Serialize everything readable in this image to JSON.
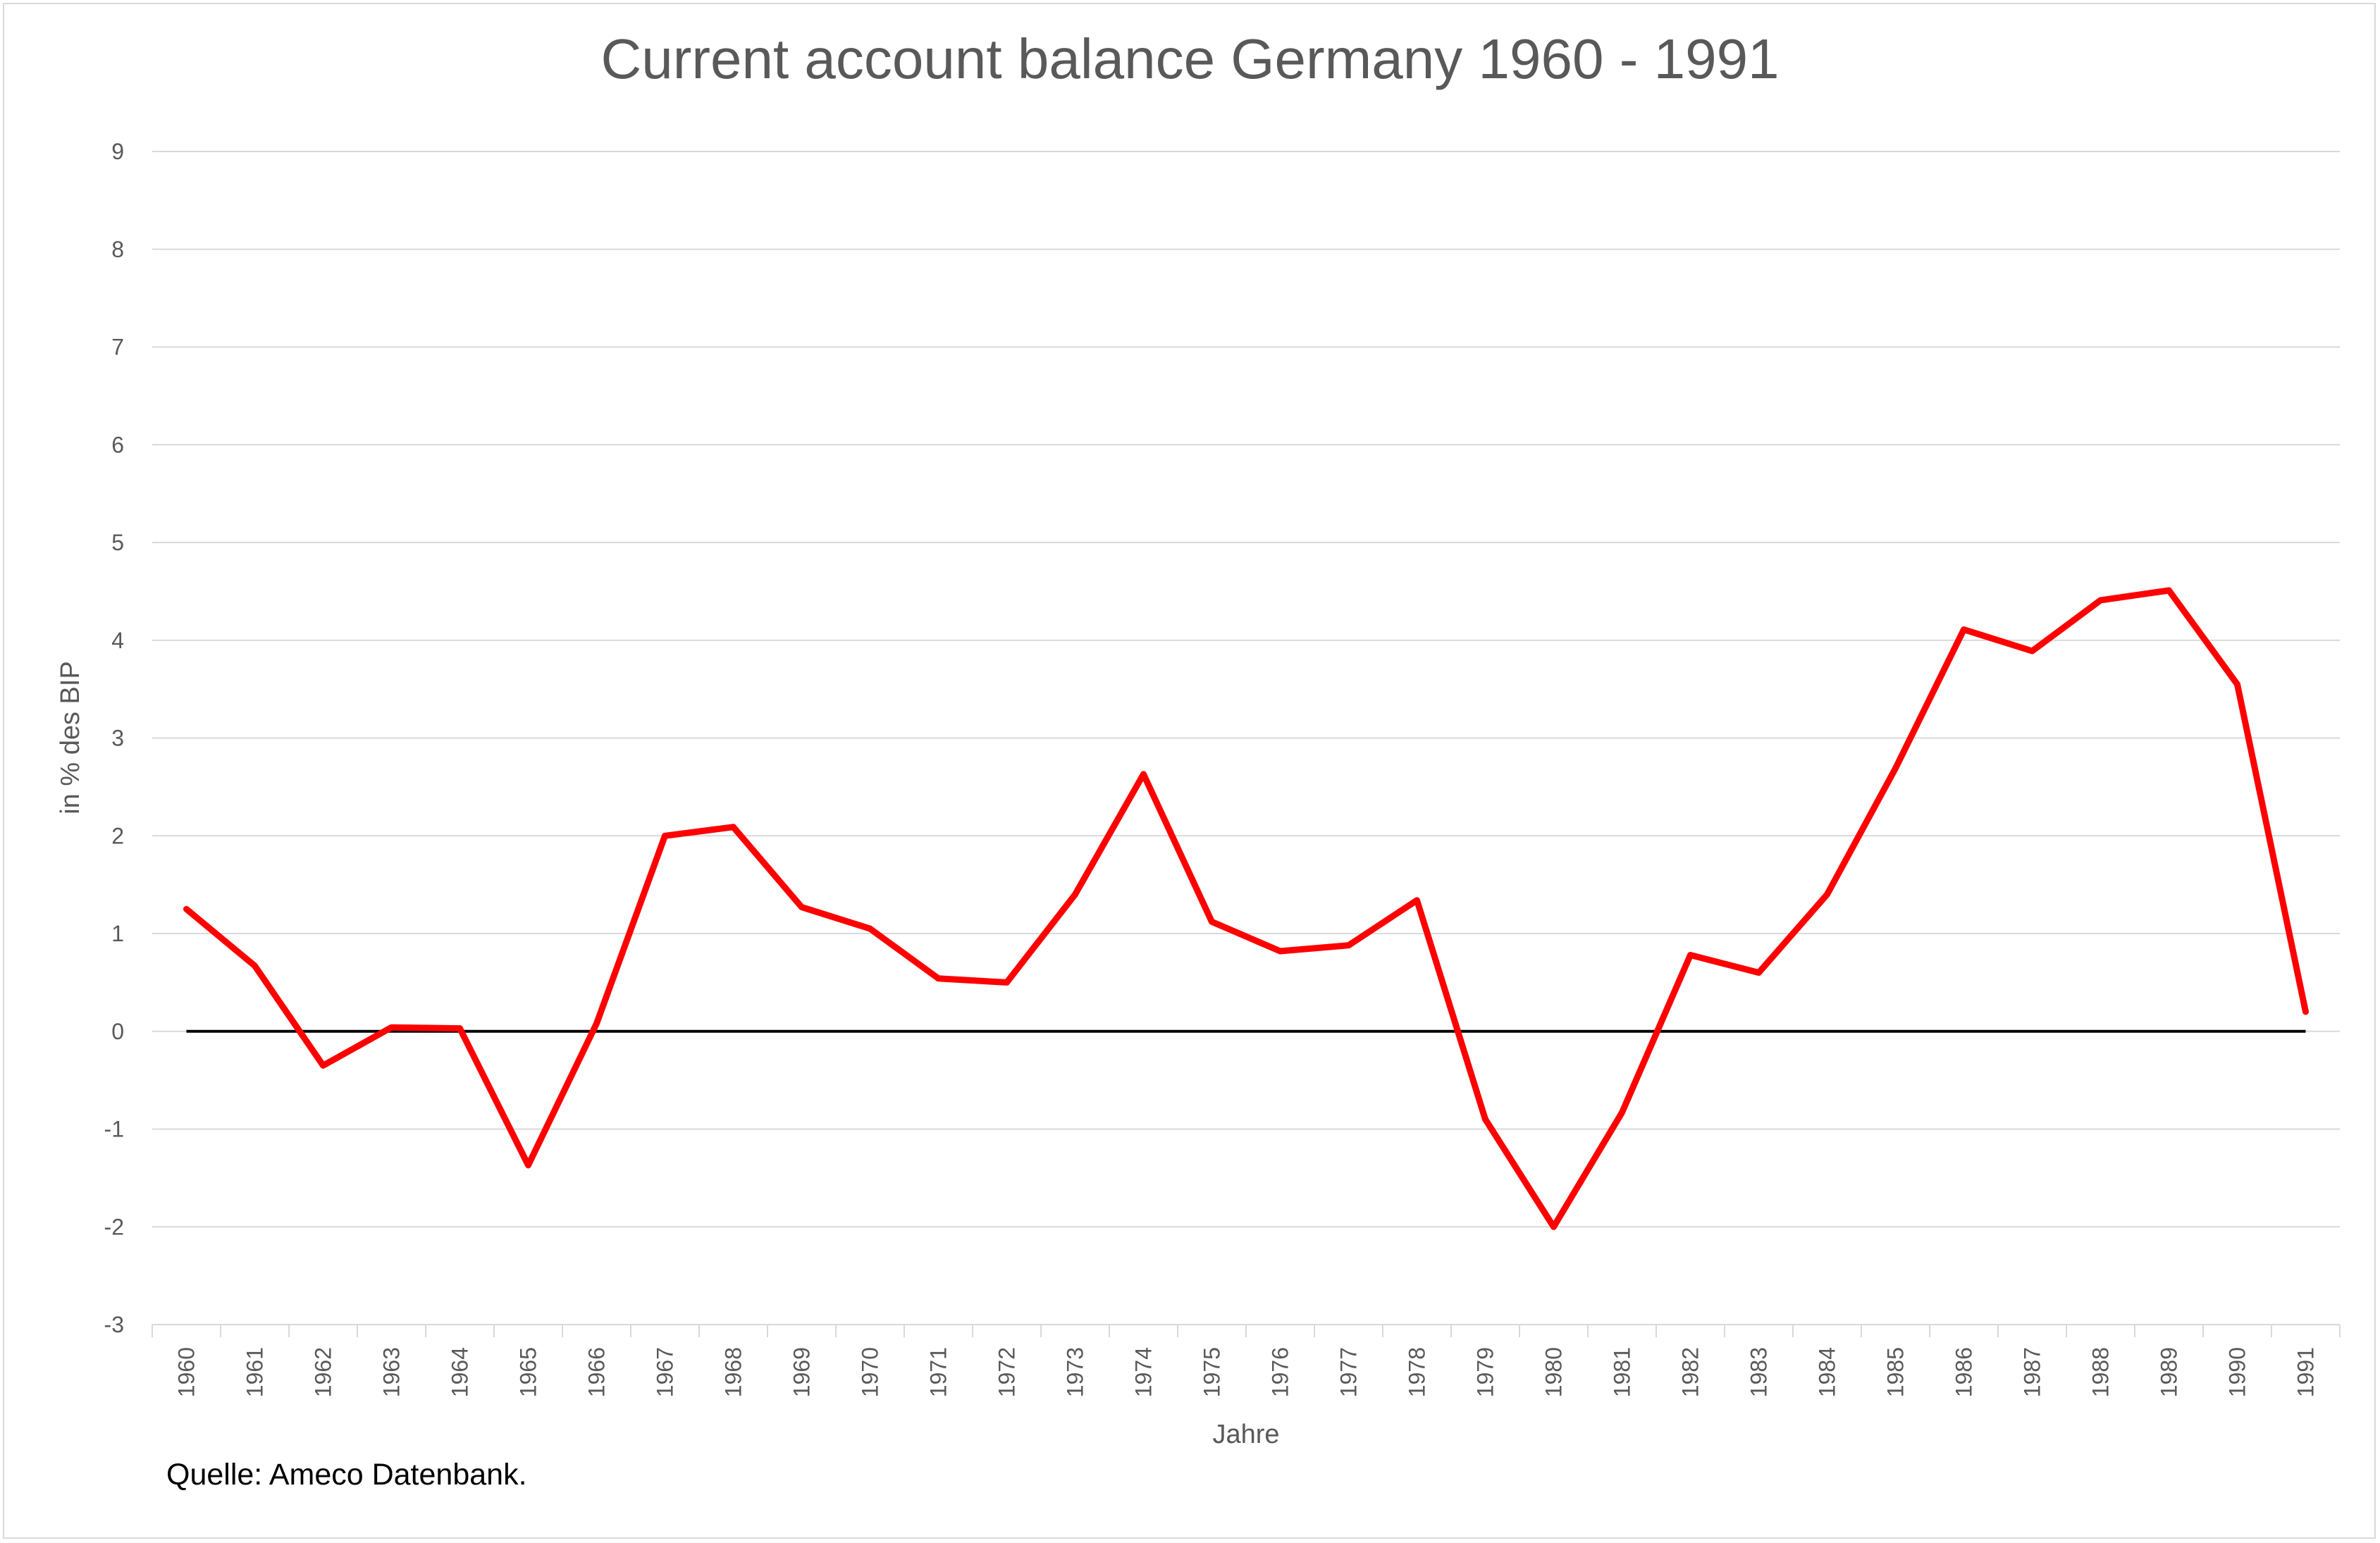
{
  "chart_data": {
    "type": "line",
    "title": "Current account balance Germany 1960 - 1991",
    "xlabel": "Jahre",
    "ylabel": "in % des BIP",
    "ylim": [
      -3,
      9
    ],
    "yticks": [
      -3,
      -2,
      -1,
      0,
      1,
      2,
      3,
      4,
      5,
      6,
      7,
      8,
      9
    ],
    "grid": true,
    "legend": "none",
    "categories": [
      "1960",
      "1961",
      "1962",
      "1963",
      "1964",
      "1965",
      "1966",
      "1967",
      "1968",
      "1969",
      "1970",
      "1971",
      "1972",
      "1973",
      "1974",
      "1975",
      "1976",
      "1977",
      "1978",
      "1979",
      "1980",
      "1981",
      "1982",
      "1983",
      "1984",
      "1985",
      "1986",
      "1987",
      "1988",
      "1989",
      "1990",
      "1991"
    ],
    "series": [
      {
        "color": "#ff0000",
        "values": [
          1.25,
          0.67,
          -0.35,
          0.04,
          0.03,
          -1.37,
          0.08,
          2.0,
          2.09,
          1.27,
          1.05,
          0.54,
          0.5,
          1.4,
          2.63,
          1.12,
          0.82,
          0.88,
          1.34,
          -0.9,
          -2.0,
          -0.83,
          0.78,
          0.6,
          1.4,
          2.69,
          4.11,
          3.89,
          4.41,
          4.51,
          3.55,
          0.2
        ]
      }
    ],
    "zero_line_color": "#000000"
  },
  "source": "Quelle: Ameco Datenbank."
}
